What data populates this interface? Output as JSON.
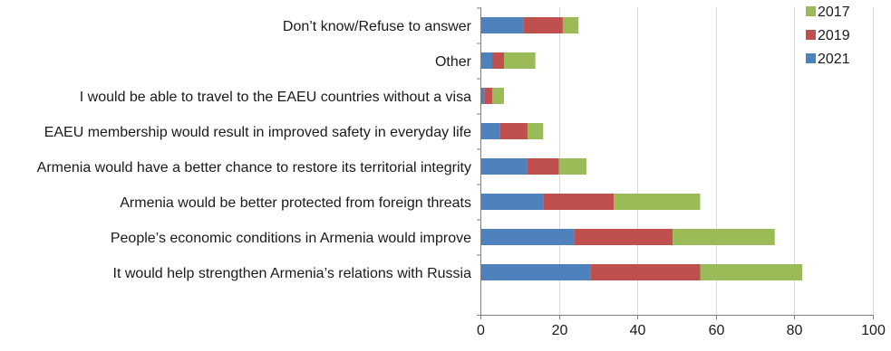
{
  "chart_data": {
    "type": "bar",
    "orientation": "horizontal",
    "stacked": true,
    "categories": [
      "Don’t know/Refuse to answer",
      "Other",
      "I would be able to travel to the EAEU countries without a visa",
      "EAEU membership would result in improved safety in everyday life",
      "Armenia would have a better chance to restore its territorial integrity",
      "Armenia would be better protected from foreign threats",
      "People’s economic conditions in Armenia would improve",
      "It would help strengthen Armenia’s relations with Russia"
    ],
    "series": [
      {
        "name": "2021",
        "color": "#4f81bd",
        "values": [
          11,
          3,
          1,
          5,
          12,
          16,
          24,
          28
        ]
      },
      {
        "name": "2019",
        "color": "#c0504d",
        "values": [
          10,
          3,
          2,
          7,
          8,
          18,
          25,
          28
        ]
      },
      {
        "name": "2017",
        "color": "#9bbb59",
        "values": [
          4,
          8,
          3,
          4,
          7,
          22,
          26,
          26
        ]
      }
    ],
    "xlim": [
      0,
      100
    ],
    "xticks": [
      "0",
      "20",
      "40",
      "60",
      "80",
      "100"
    ],
    "grid": true,
    "legend": {
      "position": "top-right",
      "order": [
        "2017",
        "2019",
        "2021"
      ]
    },
    "title": "",
    "xlabel": "",
    "ylabel": ""
  }
}
